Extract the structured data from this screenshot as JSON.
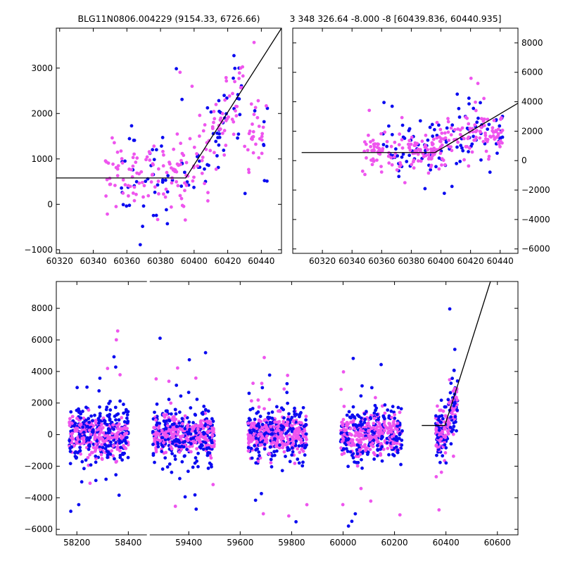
{
  "colors": {
    "series_a": "#0b0bf0",
    "series_b": "#ee55ee",
    "fit": "#000000",
    "frame": "#000000"
  },
  "chart_data": [
    {
      "id": "top_left",
      "type": "scatter",
      "title": "BLG11N0806.004229 (9154.33, 6726.66)",
      "xlim": [
        60318,
        60452
      ],
      "ylim": [
        -1080,
        3880
      ],
      "xticks": [
        60320,
        60340,
        60360,
        60380,
        60400,
        60420,
        60440
      ],
      "yticks": [
        -1000,
        0,
        1000,
        2000,
        3000
      ],
      "yaxis_side": "left",
      "series": [
        {
          "color_key": "series_a",
          "x_range": [
            60356,
            60444
          ],
          "points": 100
        },
        {
          "color_key": "series_b",
          "x_range": [
            60347,
            60444
          ],
          "points": 200
        }
      ],
      "fit": [
        [
          60318,
          580
        ],
        [
          60395,
          580
        ],
        [
          60452,
          3880
        ]
      ]
    },
    {
      "id": "top_right",
      "type": "scatter",
      "title": "3 348 326.64 -8.000 -8 [60439.836, 60440.935]",
      "xlim": [
        60300,
        60452
      ],
      "ylim": [
        -6300,
        9000
      ],
      "xticks": [
        60320,
        60340,
        60360,
        60380,
        60400,
        60420,
        60440
      ],
      "yticks": [
        -6000,
        -4000,
        -2000,
        0,
        2000,
        4000,
        6000,
        8000
      ],
      "yaxis_side": "right",
      "series": [
        {
          "color_key": "series_a",
          "x_range": [
            60358,
            60442
          ],
          "points": 110
        },
        {
          "color_key": "series_b",
          "x_range": [
            60347,
            60442
          ],
          "points": 230
        }
      ],
      "fit": [
        [
          60306,
          550
        ],
        [
          60396,
          550
        ],
        [
          60452,
          3900
        ]
      ]
    },
    {
      "id": "bottom",
      "type": "scatter",
      "title": "",
      "xlim": [
        58120,
        60680
      ],
      "ylim": [
        -6350,
        9700
      ],
      "xticks": [
        58200,
        58400,
        59400,
        59600,
        59800,
        60000,
        60200,
        60400,
        60600
      ],
      "yticks": [
        -6000,
        -4000,
        -2000,
        0,
        2000,
        4000,
        6000,
        8000
      ],
      "yaxis_side": "left",
      "axis_break": {
        "after": 58475,
        "before": 59240
      },
      "seasons": [
        {
          "x_range": [
            58170,
            58400
          ]
        },
        {
          "x_range": [
            59260,
            59500
          ]
        },
        {
          "x_range": [
            59630,
            59860
          ]
        },
        {
          "x_range": [
            59990,
            60230
          ]
        },
        {
          "x_range": [
            60360,
            60445
          ]
        }
      ],
      "fit": [
        [
          60306,
          580
        ],
        [
          60396,
          580
        ],
        [
          60573,
          9700
        ]
      ]
    }
  ]
}
